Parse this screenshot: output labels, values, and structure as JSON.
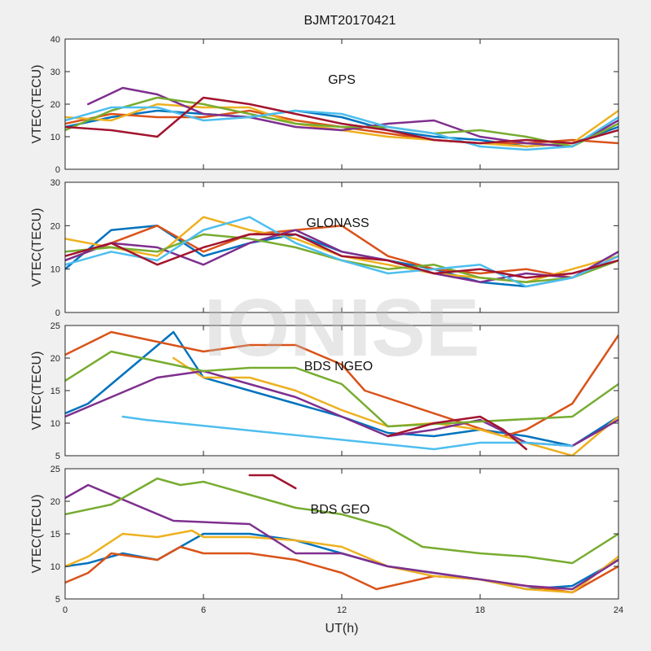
{
  "figure": {
    "title": "BJMT20170421",
    "watermark": "IONISE"
  },
  "chart_data": [
    {
      "type": "line",
      "panel_label": "GPS",
      "xlabel": "",
      "ylabel": "VTEC(TECU)",
      "xlim": [
        0,
        24
      ],
      "ylim": [
        0,
        40
      ],
      "xticks": [
        0,
        6,
        12,
        18,
        24
      ],
      "yticks": [
        0,
        10,
        20,
        30,
        40
      ],
      "show_x_ticklabels": false,
      "grid": false,
      "series": [
        {
          "color": "#0072BD",
          "x": [
            0,
            2,
            4,
            6,
            8,
            10,
            12,
            14,
            16,
            18,
            20,
            22,
            24
          ],
          "y": [
            13,
            16,
            18,
            17,
            16,
            18,
            16,
            12,
            10,
            9,
            7,
            8,
            13
          ]
        },
        {
          "color": "#D95319",
          "x": [
            0,
            2,
            4,
            6,
            8,
            10,
            12,
            14,
            16,
            18,
            20,
            22,
            24
          ],
          "y": [
            14,
            17,
            16,
            16,
            18,
            15,
            13,
            11,
            9,
            8,
            8,
            9,
            8
          ]
        },
        {
          "color": "#EDB120",
          "x": [
            0,
            2,
            4,
            6,
            8,
            10,
            12,
            14,
            16,
            18,
            20,
            22,
            24
          ],
          "y": [
            16,
            15,
            20,
            19,
            19,
            14,
            12,
            10,
            9,
            8,
            7,
            8,
            18
          ]
        },
        {
          "color": "#7E2F8E",
          "x": [
            1,
            2.5,
            4,
            6,
            8,
            10,
            12,
            14,
            16,
            18,
            20,
            22,
            24
          ],
          "y": [
            20,
            25,
            23,
            17,
            16,
            13,
            12,
            14,
            15,
            10,
            8,
            7,
            15
          ]
        },
        {
          "color": "#77AC30",
          "x": [
            0,
            2,
            4,
            6,
            8,
            10,
            12,
            14,
            16,
            18,
            20,
            22,
            24
          ],
          "y": [
            12,
            18,
            22,
            20,
            17,
            14,
            13,
            13,
            11,
            12,
            10,
            7,
            14
          ]
        },
        {
          "color": "#4DBEEE",
          "x": [
            0,
            2,
            4,
            6,
            8,
            10,
            12,
            14,
            16,
            18,
            20,
            22,
            24
          ],
          "y": [
            15,
            19,
            19,
            15,
            16,
            18,
            17,
            13,
            11,
            7,
            6,
            7,
            16
          ]
        },
        {
          "color": "#A2142F",
          "x": [
            0,
            2,
            4,
            6,
            8,
            10,
            12,
            14,
            16,
            18,
            20,
            22,
            24
          ],
          "y": [
            13,
            12,
            10,
            22,
            20,
            17,
            14,
            12,
            9,
            8,
            9,
            8,
            12
          ]
        }
      ]
    },
    {
      "type": "line",
      "panel_label": "GLONASS",
      "xlabel": "",
      "ylabel": "VTEC(TECU)",
      "xlim": [
        0,
        24
      ],
      "ylim": [
        0,
        30
      ],
      "xticks": [
        0,
        6,
        12,
        18,
        24
      ],
      "yticks": [
        0,
        10,
        20,
        30
      ],
      "show_x_ticklabels": false,
      "grid": false,
      "series": [
        {
          "color": "#0072BD",
          "x": [
            0,
            2,
            4,
            6,
            8,
            10,
            12,
            14,
            16,
            18,
            20,
            22,
            24
          ],
          "y": [
            10,
            19,
            20,
            13,
            16,
            18,
            14,
            12,
            10,
            7,
            6,
            8,
            14
          ]
        },
        {
          "color": "#D95319",
          "x": [
            0,
            2,
            4,
            6,
            8,
            10,
            12,
            14,
            16,
            18,
            20,
            22,
            24
          ],
          "y": [
            12,
            16,
            20,
            14,
            18,
            19,
            20,
            13,
            10,
            9,
            10,
            8,
            13
          ]
        },
        {
          "color": "#EDB120",
          "x": [
            0,
            2,
            4,
            6,
            8,
            10,
            12,
            14,
            16,
            18,
            20,
            22,
            24
          ],
          "y": [
            17,
            15,
            13,
            22,
            19,
            17,
            13,
            11,
            9,
            8,
            7,
            10,
            13
          ]
        },
        {
          "color": "#7E2F8E",
          "x": [
            0,
            2,
            4,
            6,
            8,
            10,
            12,
            14,
            16,
            18,
            20,
            22,
            24
          ],
          "y": [
            12,
            16,
            15,
            11,
            16,
            19,
            14,
            12,
            9,
            7,
            9,
            8,
            14
          ]
        },
        {
          "color": "#77AC30",
          "x": [
            0,
            2,
            4,
            6,
            8,
            10,
            12,
            14,
            16,
            18,
            20,
            22,
            24
          ],
          "y": [
            14,
            15,
            14,
            18,
            17,
            15,
            12,
            10,
            11,
            8,
            7,
            8,
            12
          ]
        },
        {
          "color": "#4DBEEE",
          "x": [
            0,
            2,
            4,
            6,
            8,
            10,
            12,
            14,
            16,
            18,
            20,
            22,
            24
          ],
          "y": [
            11,
            14,
            12,
            19,
            22,
            16,
            12,
            9,
            10,
            11,
            6,
            8,
            13
          ]
        },
        {
          "color": "#A2142F",
          "x": [
            0,
            2,
            4,
            6,
            8,
            10,
            12,
            14,
            16,
            18,
            20,
            22,
            24
          ],
          "y": [
            13,
            16,
            11,
            15,
            18,
            18,
            13,
            12,
            9,
            10,
            8,
            9,
            12
          ]
        }
      ]
    },
    {
      "type": "line",
      "panel_label": "BDS NGEO",
      "xlabel": "",
      "ylabel": "VTEC(TECU)",
      "xlim": [
        0,
        24
      ],
      "ylim": [
        5,
        25
      ],
      "xticks": [
        0,
        6,
        12,
        18,
        24
      ],
      "yticks": [
        5,
        10,
        15,
        20,
        25
      ],
      "show_x_ticklabels": false,
      "grid": false,
      "series": [
        {
          "color": "#0072BD",
          "x": [
            0,
            1,
            4.7,
            6,
            8,
            10,
            12,
            14,
            16,
            18,
            20,
            22,
            24
          ],
          "y": [
            11.5,
            13,
            24,
            17,
            15,
            13,
            11,
            8.5,
            8,
            9,
            8,
            6.5,
            11
          ]
        },
        {
          "color": "#D95319",
          "x": [
            0,
            2,
            4,
            6,
            8,
            10,
            12,
            13,
            19,
            20,
            22,
            24
          ],
          "y": [
            20.5,
            24,
            22.5,
            21,
            22,
            22,
            19,
            15,
            8,
            9,
            13,
            23.5
          ]
        },
        {
          "color": "#EDB120",
          "x": [
            4.7,
            6,
            8,
            10,
            12,
            14,
            16,
            18,
            20,
            22,
            24
          ],
          "y": [
            20,
            17,
            17,
            15,
            12,
            9.5,
            10,
            9,
            7,
            5,
            11
          ]
        },
        {
          "color": "#7E2F8E",
          "x": [
            0,
            2,
            4,
            6,
            8,
            10,
            12,
            14,
            16,
            18,
            20,
            22,
            24
          ],
          "y": [
            11,
            14,
            17,
            18,
            16,
            14,
            11,
            8,
            9,
            10.5,
            7,
            6.5,
            10.5
          ]
        },
        {
          "color": "#77AC30",
          "x": [
            0,
            2,
            4,
            6,
            8,
            10,
            12,
            14,
            22,
            24
          ],
          "y": [
            16.5,
            21,
            19.5,
            18,
            18.5,
            18.5,
            16,
            9.5,
            11,
            16
          ]
        },
        {
          "color": "#4DBEEE",
          "x": [
            2.5,
            3.5,
            16,
            18,
            20,
            22
          ],
          "y": [
            11,
            10.5,
            6,
            7,
            7,
            6.5
          ]
        },
        {
          "color": "#A2142F",
          "x": [
            14,
            16,
            18,
            19,
            20
          ],
          "y": [
            8,
            10,
            11,
            9,
            6
          ]
        }
      ]
    },
    {
      "type": "line",
      "panel_label": "BDS GEO",
      "xlabel": "UT(h)",
      "ylabel": "VTEC(TECU)",
      "xlim": [
        0,
        24
      ],
      "ylim": [
        5,
        25
      ],
      "xticks": [
        0,
        6,
        12,
        18,
        24
      ],
      "yticks": [
        5,
        10,
        15,
        20,
        25
      ],
      "show_x_ticklabels": true,
      "grid": false,
      "series": [
        {
          "color": "#0072BD",
          "x": [
            0,
            1,
            2.5,
            4,
            6,
            8,
            10,
            12,
            14,
            16,
            18,
            20,
            22,
            24
          ],
          "y": [
            10,
            10.5,
            12,
            11,
            15,
            15,
            14,
            12,
            10,
            9,
            8,
            6.5,
            7,
            11
          ]
        },
        {
          "color": "#D95319",
          "x": [
            0,
            1,
            2,
            4,
            5,
            6,
            8,
            10,
            12,
            13.5,
            16,
            18,
            20,
            22,
            24
          ],
          "y": [
            7.5,
            9,
            12,
            11,
            13,
            12,
            12,
            11,
            9,
            6.5,
            8.5,
            8,
            7,
            6,
            10
          ]
        },
        {
          "color": "#EDB120",
          "x": [
            0,
            1,
            2.5,
            4,
            5.5,
            6,
            8,
            10,
            12,
            14,
            16,
            18,
            20,
            22,
            24
          ],
          "y": [
            10,
            11.5,
            15,
            14.5,
            15.5,
            14.5,
            14.5,
            14,
            13,
            10,
            8.5,
            8,
            6.5,
            6,
            11.5
          ]
        },
        {
          "color": "#7E2F8E",
          "x": [
            0,
            1,
            4.7,
            8,
            10,
            12,
            14,
            16,
            18,
            20,
            22,
            24
          ],
          "y": [
            20.5,
            22.5,
            17,
            16.5,
            12,
            12,
            10,
            9,
            8,
            7,
            6.5,
            11
          ]
        },
        {
          "color": "#77AC30",
          "x": [
            0,
            2,
            4,
            5,
            6,
            8,
            10,
            12,
            14,
            15.5,
            18,
            20,
            22,
            24
          ],
          "y": [
            18,
            19.5,
            23.5,
            22.5,
            23,
            21,
            19,
            18,
            16,
            13,
            12,
            11.5,
            10.5,
            15
          ]
        },
        {
          "color": "#A2142F",
          "x": [
            8,
            9,
            10
          ],
          "y": [
            24,
            24,
            22
          ]
        }
      ]
    }
  ]
}
